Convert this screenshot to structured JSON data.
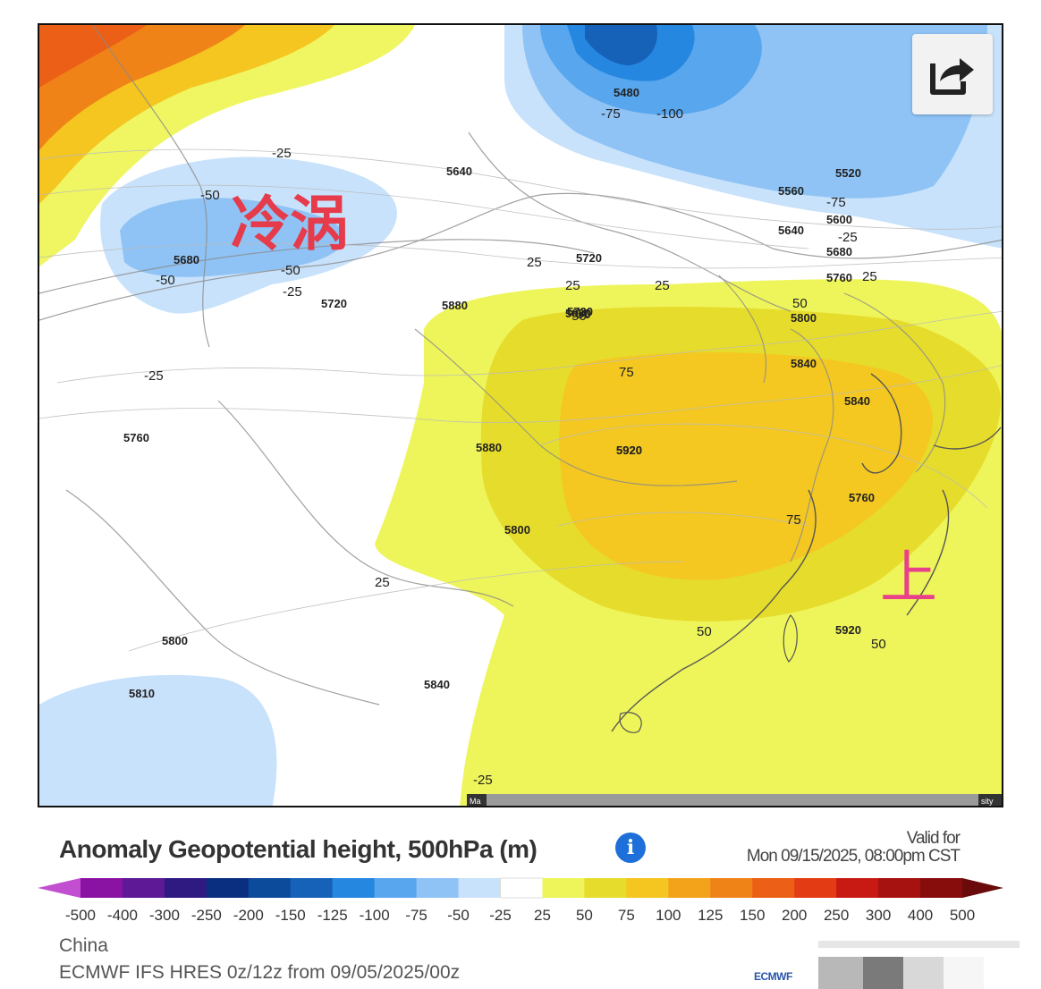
{
  "map": {
    "overlay_texts": {
      "cold_vortex": "冷涡",
      "upper": "上"
    },
    "contour_labels": [
      "5480",
      "-75",
      "-100",
      "5640",
      "5520",
      "-50",
      "5560",
      "-75",
      "5600",
      "5640",
      "-25",
      "5680",
      "5720",
      "25",
      "5760",
      "50",
      "5800",
      "75",
      "5840",
      "5880",
      "5920",
      "75",
      "50",
      "25",
      "5920",
      "50",
      "5680",
      "-50",
      "-25",
      "-50",
      "5720",
      "-25",
      "5760",
      "5800",
      "5810",
      "5840",
      "-25",
      "5880",
      "25",
      "25",
      "5880",
      "5720",
      "5760",
      "5800",
      "50",
      "5840",
      "5920",
      "50",
      "25",
      "-25"
    ],
    "bottom_slider": {
      "left_label": "Ma",
      "right_label": "sity"
    }
  },
  "share_button": {
    "icon": "share-icon"
  },
  "title": "Anomaly Geopotential height, 500hPa (m)",
  "info_icon": "info-icon",
  "valid": {
    "label": "Valid for",
    "datetime": "Mon 09/15/2025, 08:00pm CST"
  },
  "colorbar": {
    "colors": [
      "#c24fd0",
      "#8b13a3",
      "#5e1a96",
      "#2f1a82",
      "#0b2f80",
      "#0c4a9c",
      "#1662b8",
      "#2587e0",
      "#57a6ee",
      "#8fc3f5",
      "#c8e2fb",
      "#ffffff",
      "#eef55a",
      "#e6dc2c",
      "#f5c520",
      "#f3a31a",
      "#f08318",
      "#ec5f16",
      "#e33b14",
      "#c81a12",
      "#a51210",
      "#870d0c",
      "#6a0a0a"
    ],
    "ticks": [
      "-500",
      "-400",
      "-300",
      "-250",
      "-200",
      "-150",
      "-125",
      "-100",
      "-75",
      "-50",
      "-25",
      "25",
      "50",
      "75",
      "100",
      "125",
      "150",
      "200",
      "250",
      "300",
      "400",
      "500"
    ]
  },
  "region": "China",
  "model": "ECMWF IFS HRES 0z/12z from 09/05/2025/00z",
  "logo": "ECMWF"
}
